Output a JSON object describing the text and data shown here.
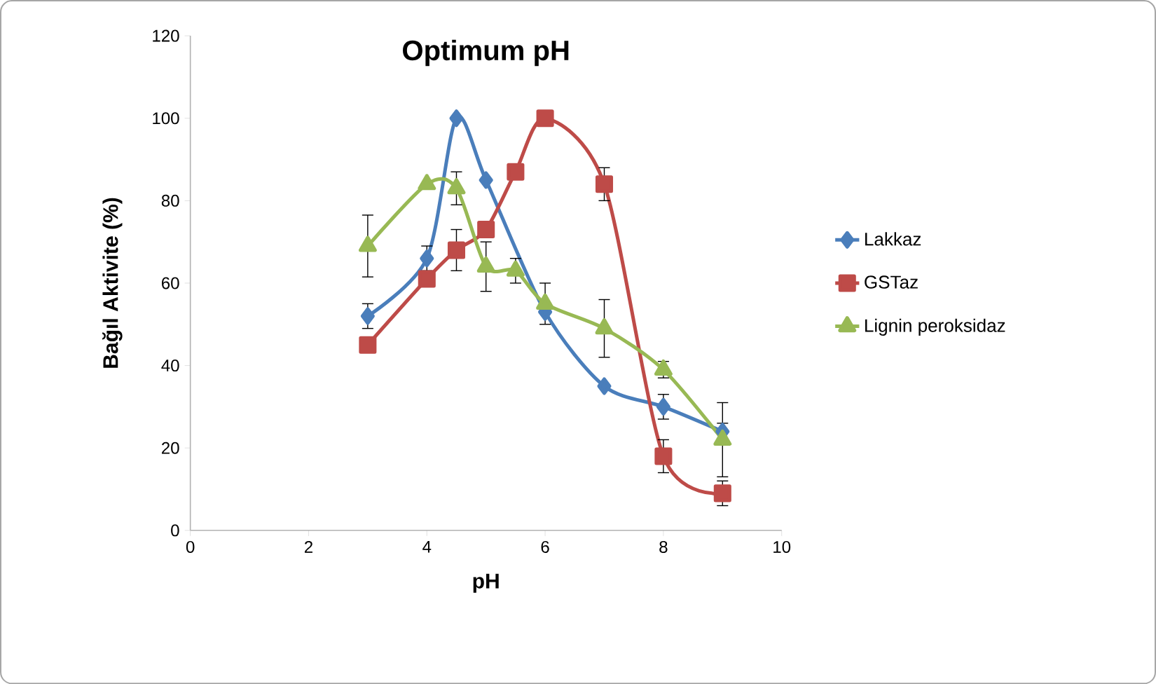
{
  "chart_data": {
    "type": "line",
    "title": "Optimum pH",
    "xlabel": "pH",
    "ylabel": "Bağıl Aktivite (%)",
    "x": [
      3,
      4,
      4.5,
      5,
      5.5,
      6,
      7,
      8,
      9
    ],
    "series": [
      {
        "name": "Lakkaz",
        "color": "#4a7ebb",
        "marker": "diamond",
        "values": [
          52,
          66,
          100,
          85,
          null,
          53,
          35,
          30,
          24
        ],
        "errors": [
          3,
          3,
          null,
          null,
          null,
          null,
          null,
          3,
          2
        ]
      },
      {
        "name": "GSTaz",
        "color": "#be4b48",
        "marker": "square",
        "values": [
          45,
          61,
          68,
          73,
          87,
          100,
          84,
          18,
          9
        ],
        "errors": [
          null,
          null,
          5,
          null,
          null,
          null,
          4,
          4,
          3
        ]
      },
      {
        "name": "Lignin peroksidaz",
        "color": "#98b954",
        "marker": "triangle",
        "values": [
          69,
          84,
          83,
          64,
          63,
          55,
          49,
          39,
          22
        ],
        "errors": [
          7.5,
          null,
          4,
          6,
          3,
          5,
          7,
          2,
          9
        ]
      }
    ],
    "xlim": [
      0,
      10
    ],
    "xticks": [
      0,
      2,
      4,
      6,
      8,
      10
    ],
    "ylim": [
      0,
      120
    ],
    "yticks": [
      0,
      20,
      40,
      60,
      80,
      100,
      120
    ],
    "grid": false,
    "legend": "right"
  }
}
